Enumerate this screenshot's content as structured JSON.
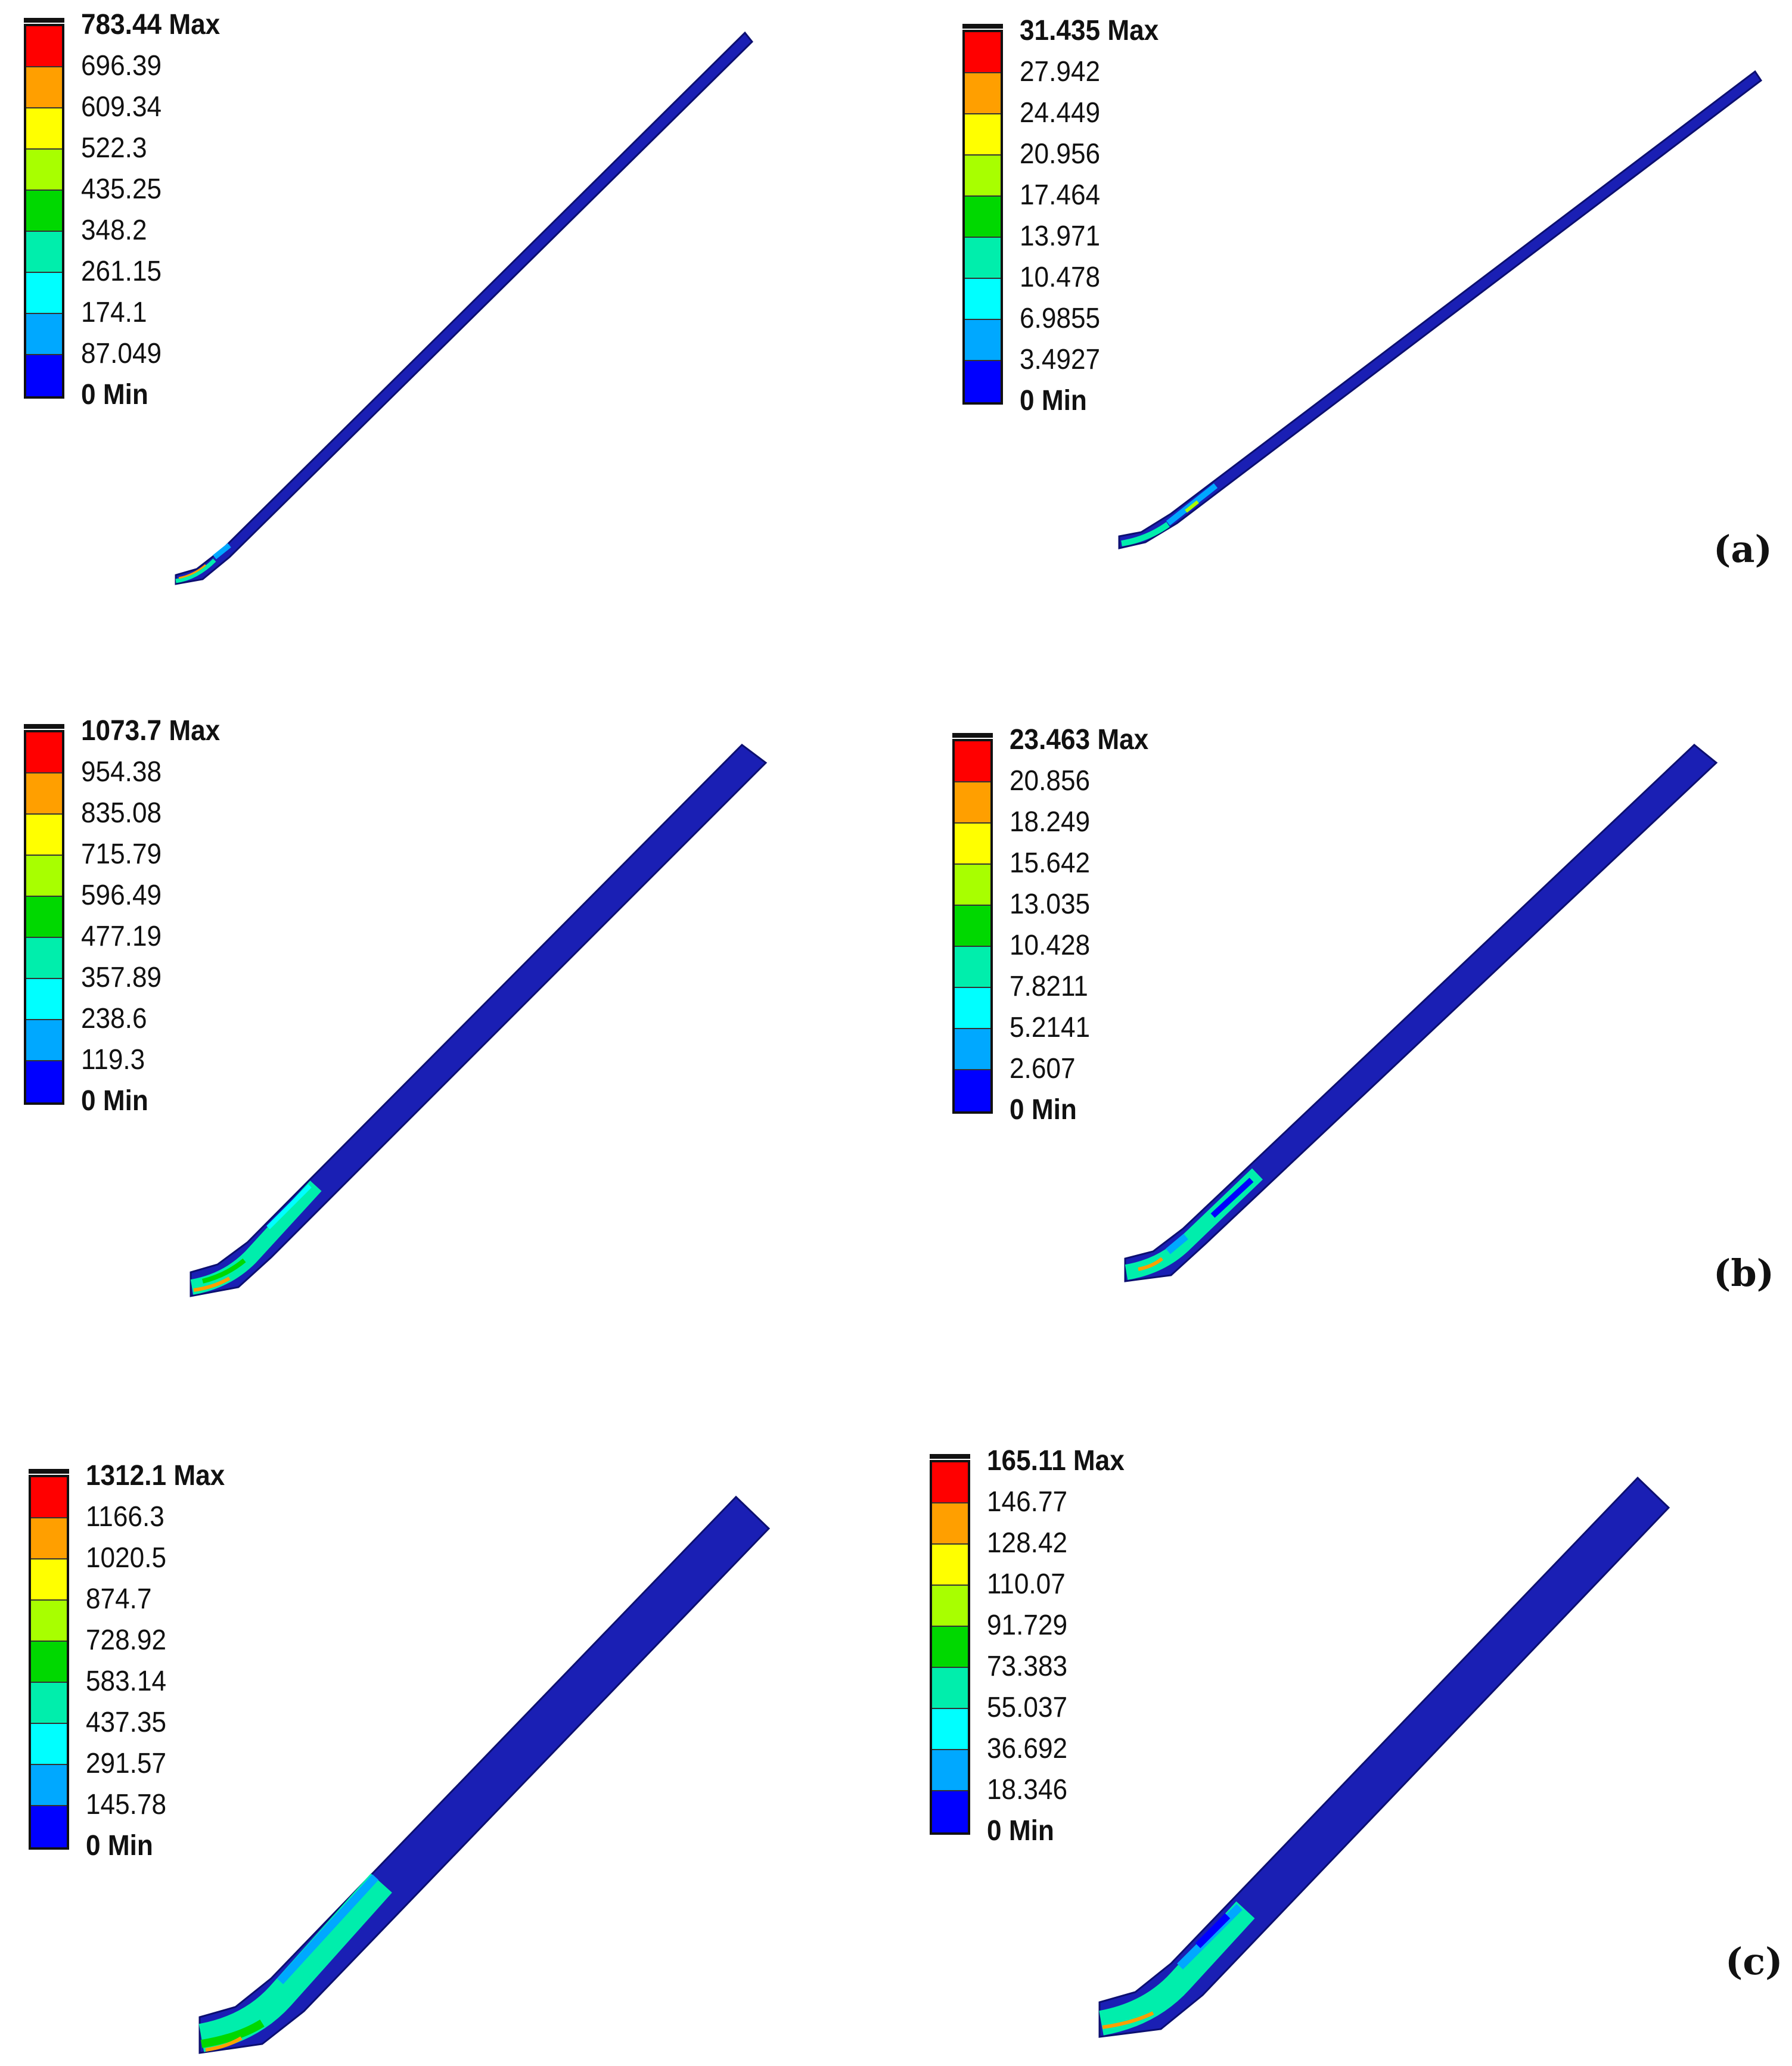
{
  "palette": [
    "#ff0000",
    "#ff9f00",
    "#ffff00",
    "#a8ff00",
    "#00d800",
    "#00eeac",
    "#00ffff",
    "#00a8ff",
    "#0000ff"
  ],
  "body_color": "#1a1fb4",
  "panels": [
    {
      "id": "a-left",
      "labels": [
        "783.44 Max",
        "696.39",
        "609.34",
        "522.3",
        "435.25",
        "348.2",
        "261.15",
        "174.1",
        "87.049",
        "0 Min"
      ]
    },
    {
      "id": "a-right",
      "labels": [
        "31.435 Max",
        "27.942",
        "24.449",
        "20.956",
        "17.464",
        "13.971",
        "10.478",
        "6.9855",
        "3.4927",
        "0 Min"
      ]
    },
    {
      "id": "b-left",
      "labels": [
        "1073.7 Max",
        "954.38",
        "835.08",
        "715.79",
        "596.49",
        "477.19",
        "357.89",
        "238.6",
        "119.3",
        "0 Min"
      ]
    },
    {
      "id": "b-right",
      "labels": [
        "23.463 Max",
        "20.856",
        "18.249",
        "15.642",
        "13.035",
        "10.428",
        "7.8211",
        "5.2141",
        "2.607",
        "0 Min"
      ]
    },
    {
      "id": "c-left",
      "labels": [
        "1312.1 Max",
        "1166.3",
        "1020.5",
        "874.7",
        "728.92",
        "583.14",
        "437.35",
        "291.57",
        "145.78",
        "0 Min"
      ]
    },
    {
      "id": "c-right",
      "labels": [
        "165.11 Max",
        "146.77",
        "128.42",
        "110.07",
        "91.729",
        "73.383",
        "55.037",
        "36.692",
        "18.346",
        "0 Min"
      ]
    }
  ],
  "tags": {
    "a": "(a)",
    "b": "(b)",
    "c": "(c)"
  }
}
